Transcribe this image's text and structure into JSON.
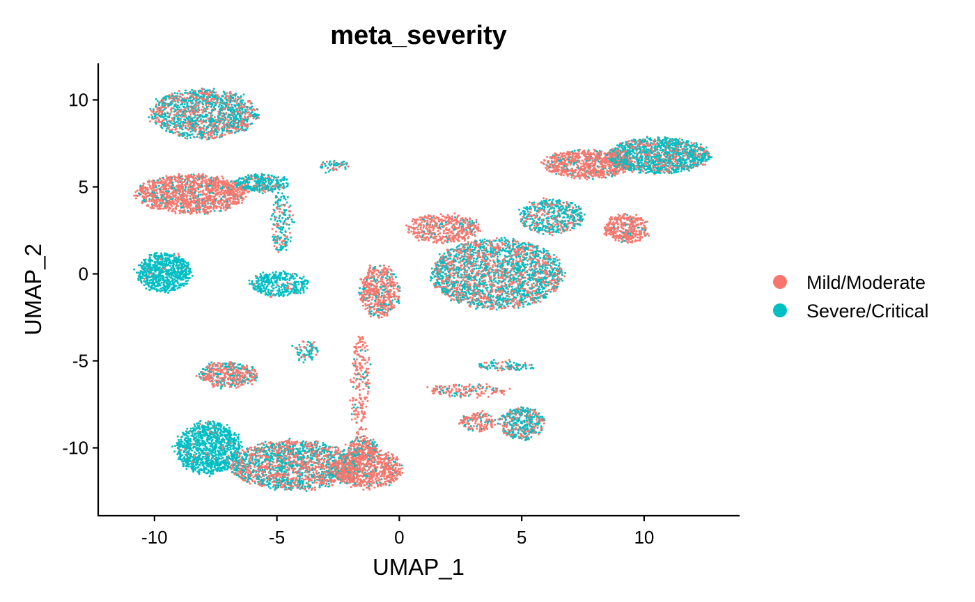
{
  "chart_data": {
    "type": "scatter",
    "title": "meta_severity",
    "xlabel": "UMAP_1",
    "ylabel": "UMAP_2",
    "xlim": [
      -12.3,
      13.9
    ],
    "ylim": [
      -13.9,
      12.1
    ],
    "xticks": [
      -10,
      -5,
      0,
      5,
      10
    ],
    "yticks": [
      -10,
      -5,
      0,
      5,
      10
    ],
    "xtick_labels": [
      "-10",
      "-5",
      "0",
      "5",
      "10"
    ],
    "ytick_labels": [
      "-10",
      "-5",
      "0",
      "5",
      "10"
    ],
    "grid": false,
    "legend_position": "right",
    "series": [
      {
        "name": "Mild/Moderate",
        "color": "#F8766D"
      },
      {
        "name": "Severe/Critical",
        "color": "#00BFC4"
      }
    ],
    "clusters": [
      {
        "cx": -8.0,
        "cy": 9.2,
        "rx": 2.2,
        "ry": 1.4,
        "pink": 0.45,
        "n": 1400
      },
      {
        "cx": -8.5,
        "cy": 4.6,
        "rx": 2.3,
        "ry": 1.1,
        "pink": 0.85,
        "n": 1300
      },
      {
        "cx": -5.6,
        "cy": 5.2,
        "rx": 1.1,
        "ry": 0.5,
        "pink": 0.25,
        "n": 300
      },
      {
        "cx": -4.8,
        "cy": 3.0,
        "rx": 0.4,
        "ry": 1.8,
        "pink": 0.3,
        "n": 180
      },
      {
        "cx": -9.6,
        "cy": 0.1,
        "rx": 1.1,
        "ry": 1.1,
        "pink": 0.03,
        "n": 700
      },
      {
        "cx": -4.9,
        "cy": -0.6,
        "rx": 1.2,
        "ry": 0.7,
        "pink": 0.05,
        "n": 350
      },
      {
        "cx": -7.0,
        "cy": -5.8,
        "rx": 1.2,
        "ry": 0.7,
        "pink": 0.7,
        "n": 450
      },
      {
        "cx": -3.8,
        "cy": -4.4,
        "rx": 0.5,
        "ry": 0.6,
        "pink": 0.2,
        "n": 80
      },
      {
        "cx": -7.8,
        "cy": -10.0,
        "rx": 1.3,
        "ry": 1.5,
        "pink": 0.05,
        "n": 1100
      },
      {
        "cx": -4.3,
        "cy": -11.0,
        "rx": 2.6,
        "ry": 1.4,
        "pink": 0.55,
        "n": 1800
      },
      {
        "cx": -1.3,
        "cy": -11.2,
        "rx": 1.4,
        "ry": 1.1,
        "pink": 0.85,
        "n": 800
      },
      {
        "cx": -1.6,
        "cy": -6.5,
        "rx": 0.35,
        "ry": 3.0,
        "pink": 0.9,
        "n": 220
      },
      {
        "cx": -0.8,
        "cy": -1.0,
        "rx": 0.8,
        "ry": 1.5,
        "pink": 0.8,
        "n": 500
      },
      {
        "cx": 1.8,
        "cy": 2.6,
        "rx": 1.5,
        "ry": 0.8,
        "pink": 0.85,
        "n": 450
      },
      {
        "cx": 4.0,
        "cy": 0.0,
        "rx": 2.7,
        "ry": 2.0,
        "pink": 0.45,
        "n": 2300
      },
      {
        "cx": 6.2,
        "cy": 3.3,
        "rx": 1.3,
        "ry": 1.0,
        "pink": 0.35,
        "n": 500
      },
      {
        "cx": 7.7,
        "cy": 6.3,
        "rx": 1.8,
        "ry": 0.8,
        "pink": 0.85,
        "n": 800
      },
      {
        "cx": 10.6,
        "cy": 6.8,
        "rx": 2.1,
        "ry": 1.0,
        "pink": 0.3,
        "n": 1400
      },
      {
        "cx": 9.3,
        "cy": 2.6,
        "rx": 0.9,
        "ry": 0.8,
        "pink": 0.9,
        "n": 350
      },
      {
        "cx": 5.0,
        "cy": -8.6,
        "rx": 0.9,
        "ry": 0.9,
        "pink": 0.4,
        "n": 400
      },
      {
        "cx": 3.2,
        "cy": -8.5,
        "rx": 0.7,
        "ry": 0.5,
        "pink": 0.8,
        "n": 150
      },
      {
        "cx": 2.8,
        "cy": -6.7,
        "rx": 1.7,
        "ry": 0.35,
        "pink": 0.8,
        "n": 150
      },
      {
        "cx": 4.3,
        "cy": -5.3,
        "rx": 1.2,
        "ry": 0.25,
        "pink": 0.3,
        "n": 100
      },
      {
        "cx": -2.7,
        "cy": 6.2,
        "rx": 0.6,
        "ry": 0.3,
        "pink": 0.3,
        "n": 60
      },
      {
        "cx": -1.5,
        "cy": -10.0,
        "rx": 0.6,
        "ry": 0.6,
        "pink": 0.7,
        "n": 200
      }
    ]
  }
}
